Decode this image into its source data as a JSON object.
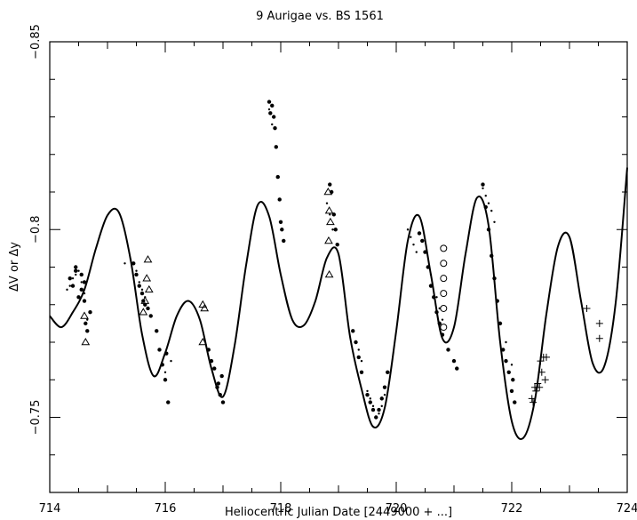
{
  "chart_data": {
    "type": "scatter",
    "title": "9 Aurigae vs. BS 1561",
    "xlabel": "Heliocentric Julian Date [2449000 + ...]",
    "ylabel": "ΔV or Δy",
    "xlim": [
      714,
      724
    ],
    "ylim": [
      -0.73,
      -0.85
    ],
    "y_axis_inverted": true,
    "x_ticks": [
      714,
      716,
      718,
      720,
      722,
      724
    ],
    "x_tick_labels": [
      "714",
      "716",
      "718",
      "720",
      "722",
      "724"
    ],
    "y_ticks": [
      -0.75,
      -0.8,
      -0.85
    ],
    "y_tick_labels": [
      "−0.75",
      "−0.8",
      "−0.85"
    ],
    "grid": false,
    "legend": "none",
    "series": [
      {
        "marker": "curve",
        "x": [
          714.0,
          714.2,
          714.4,
          714.6,
          714.8,
          715.0,
          715.2,
          715.4,
          715.6,
          715.8,
          716.0,
          716.2,
          716.4,
          716.6,
          716.8,
          717.0,
          717.2,
          717.4,
          717.6,
          717.8,
          718.0,
          718.2,
          718.4,
          718.6,
          718.8,
          719.0,
          719.2,
          719.4,
          719.6,
          719.8,
          720.0,
          720.2,
          720.4,
          720.6,
          720.8,
          721.0,
          721.2,
          721.4,
          721.6,
          721.8,
          722.0,
          722.2,
          722.4,
          722.6,
          722.8,
          723.0,
          723.2,
          723.4,
          723.6,
          723.8,
          724.0
        ],
        "y": [
          -0.777,
          -0.774,
          -0.778,
          -0.784,
          -0.795,
          -0.8038,
          -0.8045,
          -0.792,
          -0.772,
          -0.761,
          -0.7672,
          -0.777,
          -0.781,
          -0.776,
          -0.763,
          -0.7555,
          -0.769,
          -0.7905,
          -0.8065,
          -0.8035,
          -0.788,
          -0.776,
          -0.7745,
          -0.781,
          -0.7925,
          -0.7935,
          -0.7715,
          -0.7575,
          -0.7475,
          -0.7525,
          -0.773,
          -0.797,
          -0.8035,
          -0.788,
          -0.771,
          -0.774,
          -0.7935,
          -0.8085,
          -0.801,
          -0.77,
          -0.749,
          -0.7445,
          -0.7545,
          -0.7775,
          -0.7955,
          -0.798,
          -0.781,
          -0.7645,
          -0.7635,
          -0.7805,
          -0.8165
        ]
      },
      {
        "marker": "filled-circle",
        "x": [
          714.35,
          714.4,
          714.45,
          714.5,
          714.55,
          714.6,
          714.62,
          714.65,
          714.7,
          714.45,
          714.55,
          714.6,
          715.45,
          715.5,
          715.55,
          715.6,
          715.62,
          715.65,
          715.7,
          715.75,
          715.85,
          715.9,
          715.95,
          716.0,
          716.02,
          716.05,
          716.75,
          716.8,
          716.85,
          716.9,
          716.95,
          717.0,
          716.92,
          716.98,
          717.8,
          717.82,
          717.85,
          717.88,
          717.9,
          717.92,
          717.95,
          717.98,
          718.0,
          718.05,
          718.02,
          718.85,
          718.88,
          718.92,
          718.95,
          718.98,
          719.25,
          719.3,
          719.35,
          719.4,
          719.5,
          719.55,
          719.6,
          719.65,
          719.7,
          719.75,
          719.8,
          719.85,
          720.4,
          720.45,
          720.5,
          720.55,
          720.6,
          720.65,
          720.7,
          720.75,
          720.8,
          720.9,
          721.0,
          721.05,
          721.5,
          721.55,
          721.6,
          721.65,
          721.7,
          721.75,
          721.8,
          721.85,
          721.9,
          721.95,
          722.0,
          722.05,
          722.02
        ],
        "y": [
          -0.787,
          -0.785,
          -0.789,
          -0.782,
          -0.788,
          -0.781,
          -0.775,
          -0.773,
          -0.778,
          -0.79,
          -0.784,
          -0.786,
          -0.791,
          -0.788,
          -0.785,
          -0.783,
          -0.781,
          -0.78,
          -0.779,
          -0.777,
          -0.773,
          -0.768,
          -0.764,
          -0.76,
          -0.767,
          -0.754,
          -0.768,
          -0.765,
          -0.763,
          -0.758,
          -0.756,
          -0.754,
          -0.759,
          -0.761,
          -0.834,
          -0.831,
          -0.833,
          -0.83,
          -0.827,
          -0.822,
          -0.814,
          -0.808,
          -0.802,
          -0.797,
          -0.8,
          -0.812,
          -0.81,
          -0.804,
          -0.8,
          -0.796,
          -0.773,
          -0.77,
          -0.766,
          -0.762,
          -0.756,
          -0.754,
          -0.752,
          -0.75,
          -0.752,
          -0.755,
          -0.758,
          -0.762,
          -0.799,
          -0.797,
          -0.794,
          -0.79,
          -0.785,
          -0.782,
          -0.778,
          -0.775,
          -0.772,
          -0.768,
          -0.765,
          -0.763,
          -0.812,
          -0.806,
          -0.8,
          -0.793,
          -0.787,
          -0.781,
          -0.775,
          -0.768,
          -0.765,
          -0.762,
          -0.757,
          -0.754,
          -0.76
        ]
      },
      {
        "marker": "small-dot",
        "x": [
          714.3,
          714.35,
          714.4,
          714.45,
          714.5,
          714.55,
          714.6,
          714.65,
          715.3,
          715.4,
          715.5,
          715.55,
          715.6,
          715.65,
          716.0,
          716.1,
          717.8,
          717.85,
          718.8,
          718.85,
          718.9,
          719.3,
          719.35,
          719.4,
          719.5,
          719.55,
          719.6,
          719.7,
          719.75,
          719.8,
          720.2,
          720.25,
          720.3,
          720.35,
          720.6,
          720.7,
          720.75,
          720.8,
          721.5,
          721.55,
          721.6,
          721.65,
          721.7,
          721.9,
          722.0
        ],
        "y": [
          -0.784,
          -0.785,
          -0.787,
          -0.788,
          -0.789,
          -0.786,
          -0.783,
          -0.776,
          -0.791,
          -0.792,
          -0.789,
          -0.786,
          -0.784,
          -0.782,
          -0.762,
          -0.765,
          -0.832,
          -0.828,
          -0.807,
          -0.804,
          -0.8,
          -0.77,
          -0.768,
          -0.765,
          -0.757,
          -0.755,
          -0.753,
          -0.751,
          -0.753,
          -0.756,
          -0.8,
          -0.798,
          -0.796,
          -0.794,
          -0.788,
          -0.782,
          -0.779,
          -0.776,
          -0.811,
          -0.809,
          -0.807,
          -0.805,
          -0.802,
          -0.77,
          -0.764
        ]
      },
      {
        "marker": "open-triangle",
        "x": [
          714.62,
          714.6,
          715.7,
          715.68,
          715.72,
          715.65,
          715.62,
          716.65,
          716.68,
          716.65,
          718.82,
          718.84,
          718.86,
          718.83,
          718.84
        ],
        "y": [
          -0.77,
          -0.777,
          -0.792,
          -0.787,
          -0.784,
          -0.781,
          -0.778,
          -0.78,
          -0.779,
          -0.77,
          -0.81,
          -0.805,
          -0.802,
          -0.797,
          -0.788
        ]
      },
      {
        "marker": "open-circle",
        "x": [
          720.82,
          720.82,
          720.82,
          720.82,
          720.82,
          720.82
        ],
        "y": [
          -0.795,
          -0.791,
          -0.787,
          -0.783,
          -0.779,
          -0.774
        ]
      },
      {
        "marker": "plus",
        "x": [
          722.35,
          722.37,
          722.4,
          722.42,
          722.45,
          722.48,
          722.5,
          722.52,
          722.55,
          722.58,
          722.6,
          723.3,
          723.52,
          723.52
        ],
        "y": [
          -0.755,
          -0.754,
          -0.758,
          -0.757,
          -0.759,
          -0.758,
          -0.765,
          -0.762,
          -0.766,
          -0.76,
          -0.766,
          -0.779,
          -0.775,
          -0.771
        ]
      }
    ]
  }
}
